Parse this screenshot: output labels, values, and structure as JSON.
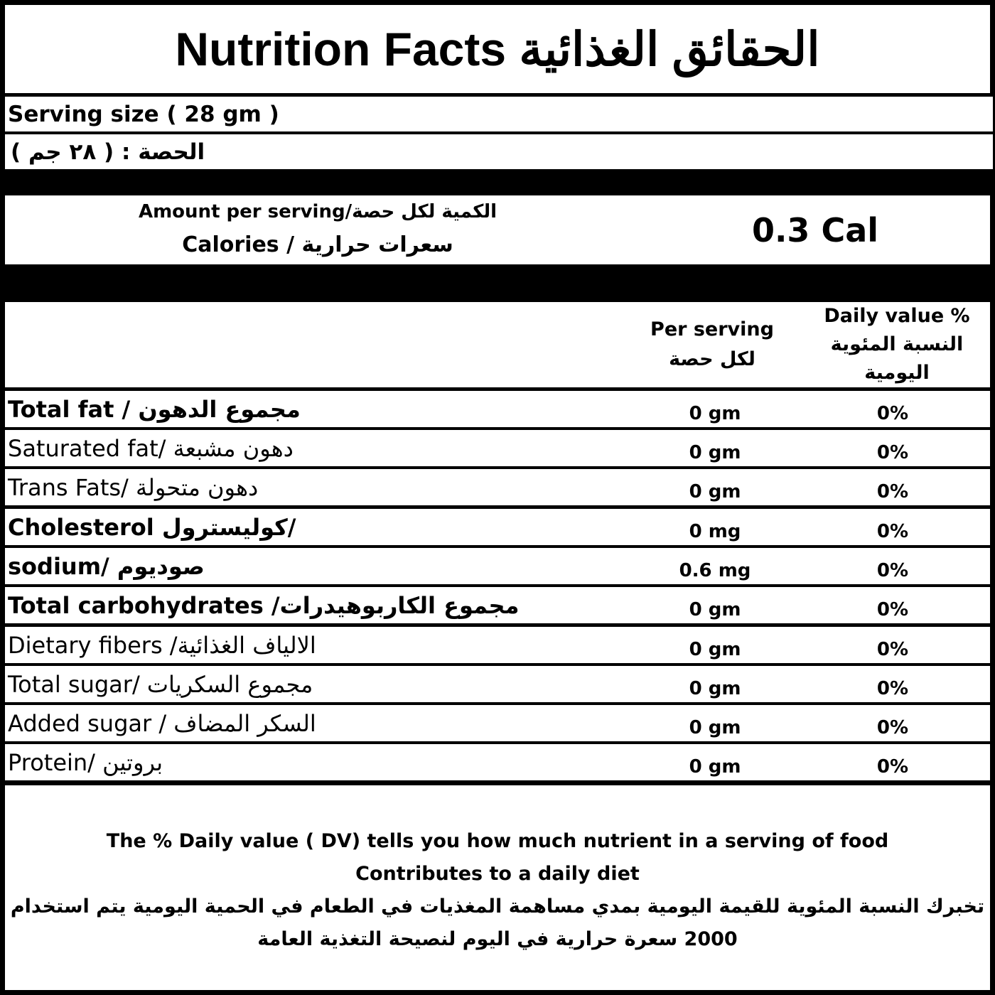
{
  "title": "Nutrition Facts الحقائق الغذائية",
  "serving_size_en": "Serving size ( 28 gm )",
  "serving_size_ar": "الحصة : ( ٢٨ جم )",
  "amount": {
    "label": "Amount per serving/الكمية لكل حصة",
    "calories_label": "Calories  /  سعرات حرارية",
    "calories_value": "0.3 Cal"
  },
  "header": {
    "per_serving": "Per serving",
    "per_serving_ar": "لكل حصة",
    "daily_value": "Daily value %",
    "daily_value_ar": "النسبة المئوية اليومية"
  },
  "nutrients": [
    {
      "name": "Total fat / مجموع الدهون",
      "bold": true,
      "value": "0 gm",
      "dv": "0%"
    },
    {
      "name": "Saturated fat/ دهون مشبعة",
      "bold": false,
      "value": "0 gm",
      "dv": "0%"
    },
    {
      "name": "Trans Fats/ دهون متحولة",
      "bold": false,
      "value": "0 gm",
      "dv": "0%"
    },
    {
      "name": "Cholesterol كوليسترول/",
      "bold": true,
      "value": "0 mg",
      "dv": "0%"
    },
    {
      "name": "sodium/ صوديوم",
      "bold": true,
      "value": "0.6 mg",
      "dv": "0%"
    },
    {
      "name": "Total carbohydrates /مجموع الكاربوهيدرات",
      "bold": true,
      "value": "0 gm",
      "dv": "0%"
    },
    {
      "name": "Dietary fibers /الالياف الغذائية",
      "bold": false,
      "value": "0 gm",
      "dv": "0%"
    },
    {
      "name": "Total sugar/ مجموع السكريات",
      "bold": false,
      "value": "0 gm",
      "dv": "0%"
    },
    {
      "name": "Added sugar / السكر المضاف",
      "bold": false,
      "value": "0 gm",
      "dv": "0%"
    },
    {
      "name": "Protein/ بروتين",
      "bold": false,
      "value": "0 gm",
      "dv": "0%"
    }
  ],
  "footer": {
    "en_line1": "The % Daily value ( DV) tells you how much nutrient in a serving of food",
    "en_line2": "Contributes to a daily diet",
    "ar_line1": "تخبرك النسبة المئوية للقيمة اليومية بمدي مساهمة المغذيات في الطعام في الحمية اليومية  يتم استخدام",
    "ar_line2": "2000 سعرة حرارية في اليوم لنصيحة التغذية العامة"
  }
}
